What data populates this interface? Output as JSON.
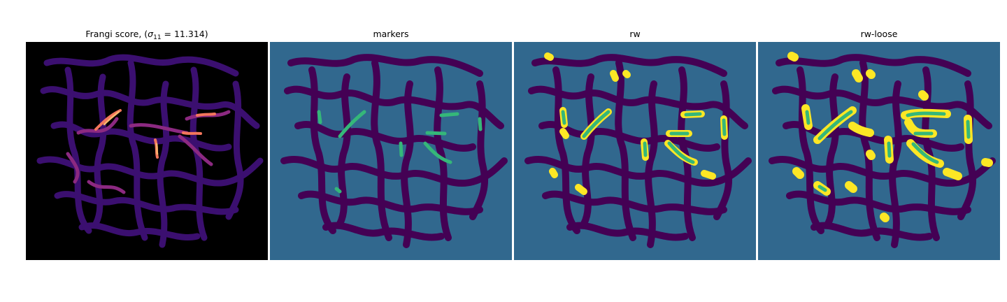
{
  "panels": [
    {
      "title_prefix": "Frangi score, (",
      "title_sigma": "σ",
      "title_sub": "11",
      "title_suffix": " = 11.314)"
    },
    {
      "title": "markers"
    },
    {
      "title": "rw"
    },
    {
      "title": "rw-loose"
    }
  ],
  "colors": {
    "frangi_background": "#000000",
    "frangi_low": "#3b0f70",
    "frangi_mid": "#b5367a",
    "frangi_high": "#fcb76f",
    "label_background": "#31688e",
    "label_region": "#440154",
    "label_marker": "#35b779",
    "label_segment": "#fde725"
  }
}
